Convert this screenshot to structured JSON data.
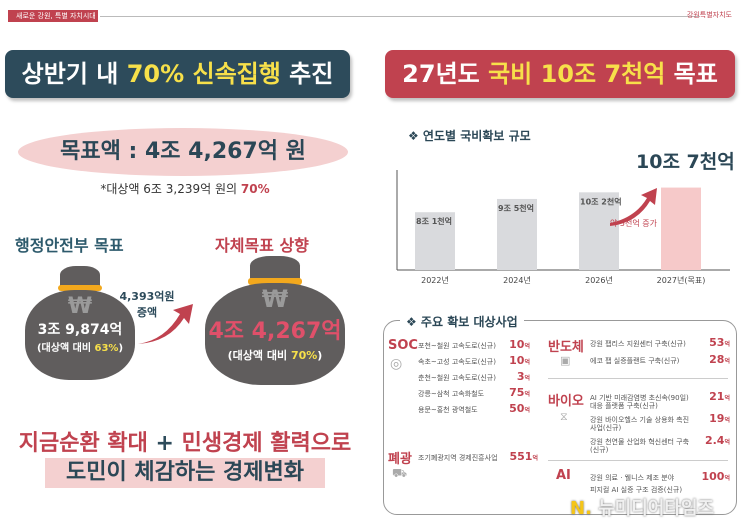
{
  "header": {
    "tag": "새로운 강원, 특별 자치시대",
    "org": "강원특별자치도"
  },
  "left": {
    "banner": {
      "pre": "상반기 내 ",
      "highlight": "70% 신속집행",
      "post": " 추진"
    },
    "target": "목표액 : 4조 4,267억 원",
    "target_note_pre": "*대상액 6조 3,239억 원의 ",
    "target_note_pct": "70%",
    "mois": {
      "title": "행정안전부 목표",
      "amount": "3조 9,874억",
      "ratio_pre": "(대상액 대비 ",
      "ratio_pct": "63%",
      "ratio_post": ")"
    },
    "increase": {
      "amount": "4,393억원",
      "label": "증액"
    },
    "self": {
      "title": "자체목표 상향",
      "amount": "4조 4,267억",
      "ratio_pre": "(대상액 대비 ",
      "ratio_pct": "70%",
      "ratio_post": ")"
    },
    "won_symbol": "₩",
    "slogan1_a": "지금순환 확대",
    "slogan1_plus": " + ",
    "slogan1_b": "민생경제 활력으로",
    "slogan2": "도민이 체감하는 경제변화"
  },
  "right": {
    "banner": {
      "pre": "27년도 ",
      "highlight": "국비 10조 7천억",
      "post": " 목표"
    },
    "chart_title": "❖ 연도별 국비확보 규모",
    "big_label": "10조 7천억",
    "increase_note": "약 5천억 증가",
    "projects_title": "❖ 주요 확보 대상사업"
  },
  "chart_data": {
    "type": "bar",
    "categories": [
      "2022년",
      "2024년",
      "2026년",
      "2027년(목표)"
    ],
    "values": [
      8.1,
      9.5,
      10.2,
      10.7
    ],
    "labels": [
      "8조 1천억",
      "9조 5천억",
      "10조 2천억",
      ""
    ],
    "unit": "조원",
    "ylim": [
      2,
      11.5
    ],
    "colors": [
      "#d9dadd",
      "#d9dadd",
      "#d9dadd",
      "#f6c9c9"
    ]
  },
  "projects": {
    "soc": {
      "name": "SOC",
      "items": [
        {
          "label": "포천~철원 고속도로(신규)",
          "amount": "10",
          "unit": "억"
        },
        {
          "label": "속초~고성 고속도로(신규)",
          "amount": "10",
          "unit": "억"
        },
        {
          "label": "춘천~철원 고속도로(신규)",
          "amount": "3",
          "unit": "억"
        },
        {
          "label": "강릉~삼척 고속화철도",
          "amount": "75",
          "unit": "억"
        },
        {
          "label": "용문~홍천 광역철도",
          "amount": "50",
          "unit": "억"
        }
      ]
    },
    "closed_mine": {
      "name": "폐광",
      "items": [
        {
          "label": "조기폐광지역 경제진흥사업",
          "amount": "551",
          "unit": "억"
        }
      ]
    },
    "semi": {
      "name": "반도체",
      "items": [
        {
          "label": "강원 팹리스 지원센터 구축(신규)",
          "amount": "53",
          "unit": "억"
        },
        {
          "label": "에코 팹 실증플랜트 구축(신규)",
          "amount": "28",
          "unit": "억"
        }
      ]
    },
    "bio": {
      "name": "바이오",
      "items": [
        {
          "label": "AI 기반 미래감염병 초신속(90일) 대응 플랫폼 구축(신규)",
          "amount": "21",
          "unit": "억"
        },
        {
          "label": "강원 바이오헬스 기술 상용화 촉진 사업(신규)",
          "amount": "19",
          "unit": "억"
        },
        {
          "label": "강원 천연물 산업화 혁신센터 구축(신규)",
          "amount": "2.4",
          "unit": "억"
        }
      ]
    },
    "ai": {
      "name": "AI",
      "items": [
        {
          "label": "강원 의료 · 웰니스 제조 분야",
          "amount": "100",
          "unit": "억"
        },
        {
          "label": "피지컬 AI 실증 구조 검증(신규)",
          "amount": "",
          "unit": ""
        }
      ]
    }
  },
  "watermark": "뉴미디어타임즈"
}
